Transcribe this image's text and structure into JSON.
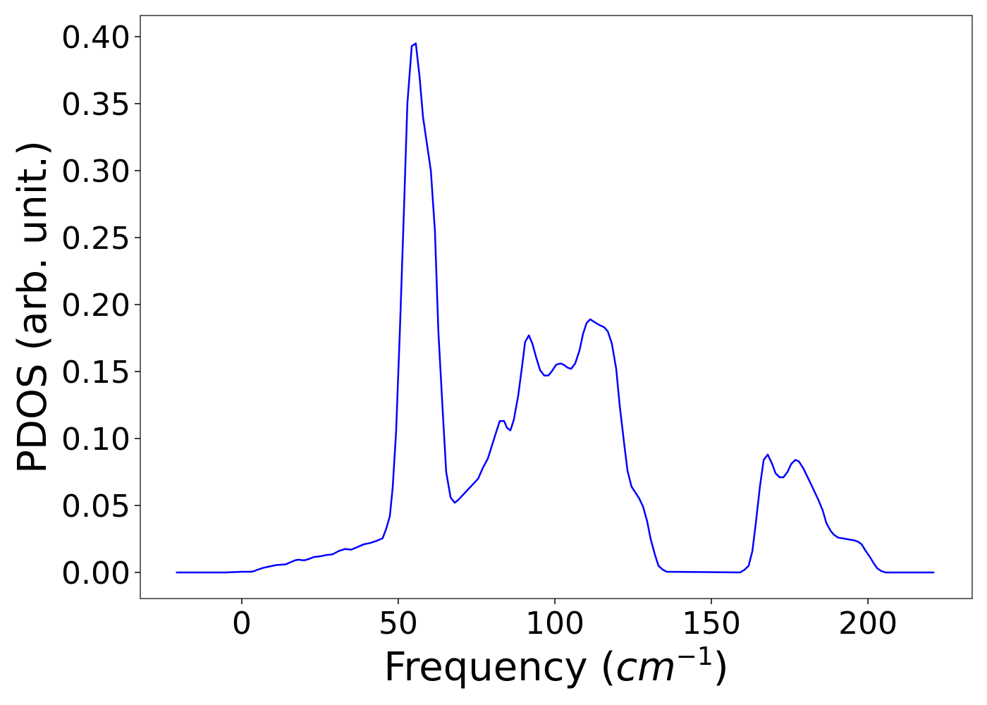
{
  "chart_data": {
    "type": "line",
    "xlabel": [
      "Frequency (",
      "cm",
      "−1",
      ")"
    ],
    "ylabel": "PDOS (arb. unit.)",
    "color": "#0000ff",
    "x": [
      -21,
      -5,
      0,
      3,
      4,
      5,
      7,
      9,
      11,
      14,
      15,
      17,
      18,
      20,
      22,
      23,
      25,
      27,
      29,
      31,
      33,
      35,
      37,
      39,
      41,
      43,
      45,
      46.2,
      47.3,
      48.2,
      49.3,
      50.5,
      51.8,
      52.9,
      54.3,
      55.6,
      56.8,
      57.9,
      60.4,
      61.7,
      62.8,
      64.2,
      65.3,
      66.7,
      68,
      69.1,
      75.5,
      77,
      78.6,
      81.3,
      82.4,
      83.8,
      84.7,
      85.8,
      86.9,
      88.3,
      89.6,
      90.5,
      91.7,
      92.8,
      94.1,
      95.3,
      96.6,
      97.9,
      99,
      100.4,
      101.8,
      102.9,
      104,
      105.2,
      106.5,
      107.9,
      109,
      110.1,
      111.3,
      112.6,
      114,
      115.8,
      116.9,
      118.2,
      119.6,
      120.7,
      122.1,
      123.2,
      124.5,
      125.9,
      127,
      128.2,
      129.5,
      130.6,
      132,
      133.1,
      134.5,
      135.8,
      159.2,
      160.6,
      161.9,
      163.1,
      164.2,
      165.5,
      166.7,
      168,
      169.4,
      170.5,
      171.8,
      173,
      174.3,
      175.5,
      176.8,
      177.9,
      179.3,
      181.8,
      184.2,
      185.6,
      186.7,
      188.1,
      189.2,
      190.5,
      193,
      195.5,
      196.8,
      198,
      199.3,
      200.5,
      201.8,
      203,
      204.3,
      205.6,
      221.2
    ],
    "values": [
      0,
      0,
      0.0005,
      0.0005,
      0.001,
      0.002,
      0.0035,
      0.0045,
      0.0055,
      0.006,
      0.007,
      0.009,
      0.0095,
      0.009,
      0.0105,
      0.0115,
      0.012,
      0.013,
      0.0135,
      0.016,
      0.0175,
      0.017,
      0.019,
      0.021,
      0.022,
      0.0235,
      0.0255,
      0.033,
      0.042,
      0.063,
      0.105,
      0.18,
      0.27,
      0.35,
      0.393,
      0.395,
      0.37,
      0.34,
      0.3,
      0.255,
      0.18,
      0.12,
      0.075,
      0.056,
      0.052,
      0.054,
      0.07,
      0.078,
      0.085,
      0.105,
      0.113,
      0.113,
      0.108,
      0.106,
      0.114,
      0.132,
      0.155,
      0.172,
      0.177,
      0.171,
      0.16,
      0.151,
      0.147,
      0.147,
      0.15,
      0.155,
      0.156,
      0.155,
      0.153,
      0.152,
      0.156,
      0.166,
      0.178,
      0.186,
      0.189,
      0.187,
      0.185,
      0.183,
      0.18,
      0.171,
      0.152,
      0.125,
      0.097,
      0.076,
      0.064,
      0.059,
      0.055,
      0.049,
      0.038,
      0.025,
      0.013,
      0.005,
      0.002,
      0.0005,
      0,
      0.002,
      0.005,
      0.016,
      0.037,
      0.064,
      0.084,
      0.088,
      0.081,
      0.074,
      0.071,
      0.071,
      0.075,
      0.081,
      0.084,
      0.083,
      0.078,
      0.066,
      0.054,
      0.046,
      0.037,
      0.031,
      0.028,
      0.026,
      0.025,
      0.024,
      0.023,
      0.021,
      0.016,
      0.012,
      0.007,
      0.003,
      0.001,
      0,
      0
    ],
    "xlim": [
      -32.4,
      233.3
    ],
    "ylim": [
      -0.0195,
      0.4158
    ],
    "xticks": [
      0,
      50,
      100,
      150,
      200
    ],
    "yticks": [
      {
        "value": 0,
        "label": "0.00"
      },
      {
        "value": 0.05,
        "label": "0.05"
      },
      {
        "value": 0.1,
        "label": "0.10"
      },
      {
        "value": 0.15,
        "label": "0.15"
      },
      {
        "value": 0.2,
        "label": "0.20"
      },
      {
        "value": 0.25,
        "label": "0.25"
      },
      {
        "value": 0.3,
        "label": "0.30"
      },
      {
        "value": 0.35,
        "label": "0.35"
      },
      {
        "value": 0.4,
        "label": "0.40"
      }
    ],
    "grid": false
  }
}
